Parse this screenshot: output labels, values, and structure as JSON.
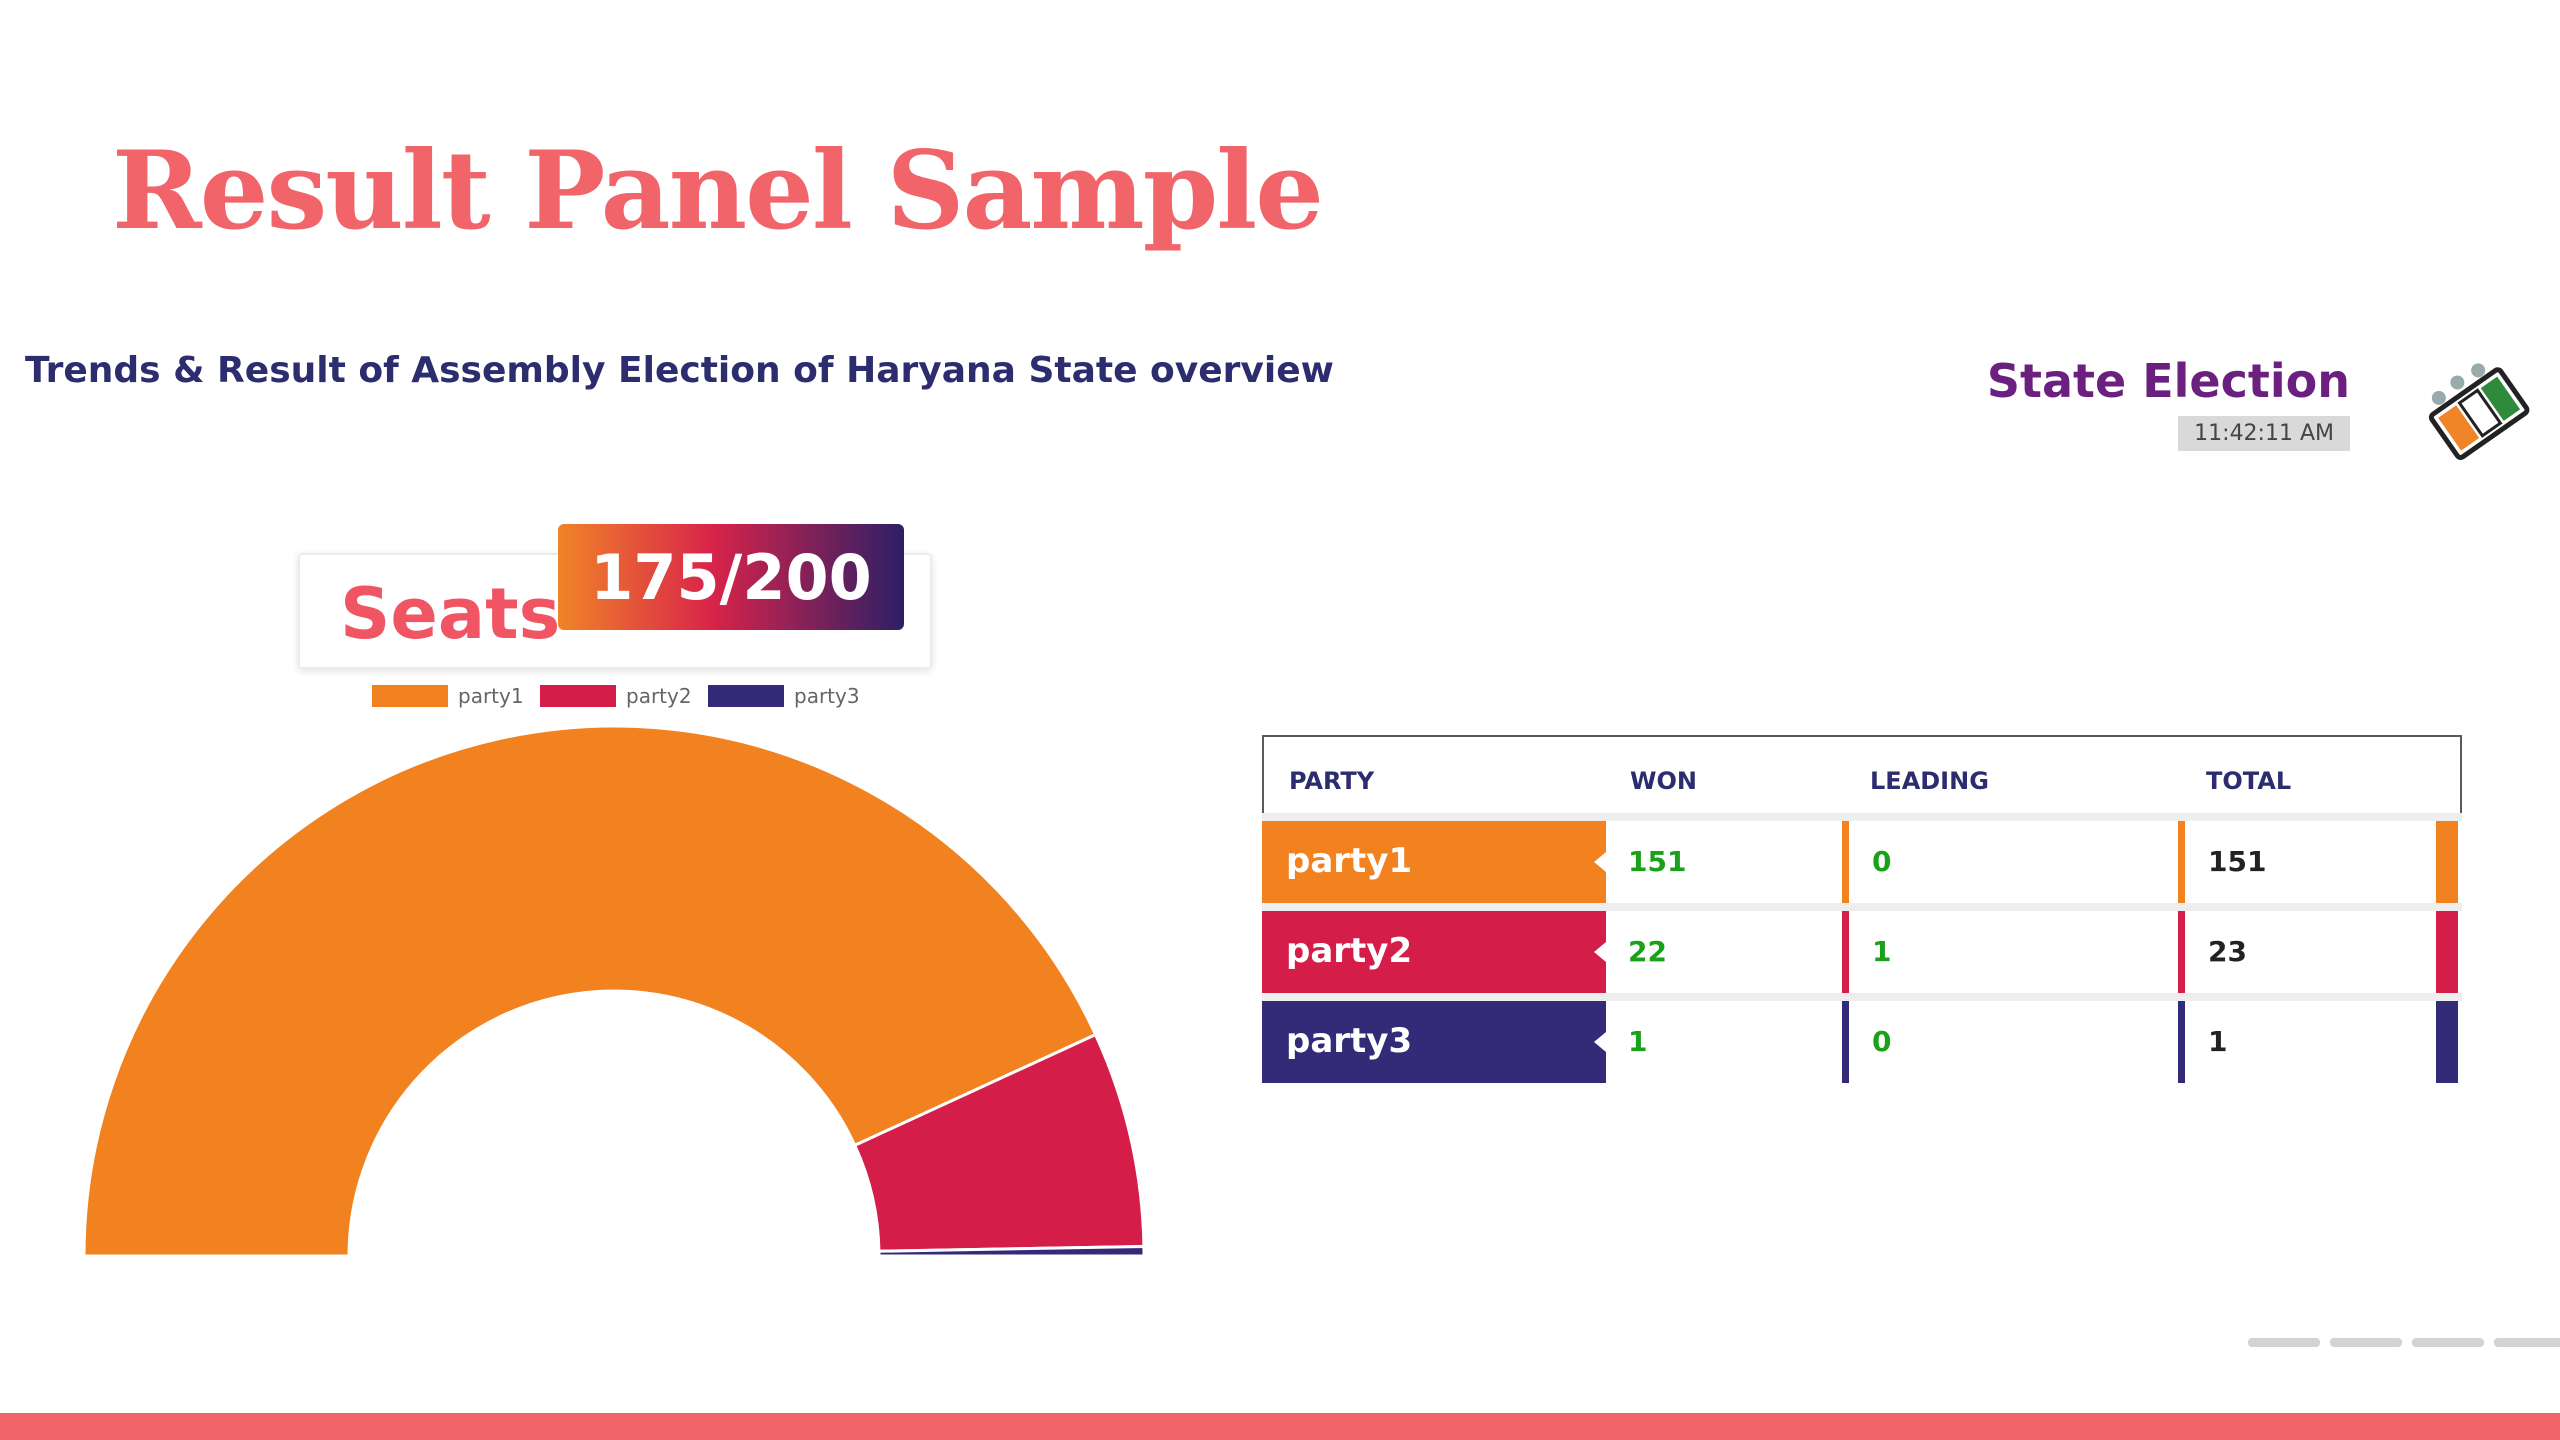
{
  "header": {
    "title": "Result Panel Sample",
    "subtitle": "Trends & Result of Assembly Election of Haryana State overview"
  },
  "brand": {
    "title": "State Election",
    "time": "11:42:11 AM",
    "logo_icon": "ballot-box-icon"
  },
  "seats": {
    "label": "Seats",
    "count": "175/200"
  },
  "colors": {
    "party1": "#f2811f",
    "party2": "#d41e49",
    "party3": "#332b78",
    "accent": "#f0646a"
  },
  "chart_data": {
    "type": "pie",
    "variant": "half-doughnut",
    "categories": [
      "party1",
      "party2",
      "party3"
    ],
    "values": [
      151,
      23,
      1
    ],
    "total": 200,
    "legend_position": "top-center"
  },
  "table": {
    "headers": [
      "PARTY",
      "WON",
      "LEADING",
      "TOTAL"
    ],
    "rows": [
      {
        "party": "party1",
        "won": "151",
        "leading": "0",
        "total": "151"
      },
      {
        "party": "party2",
        "won": "22",
        "leading": "1",
        "total": "23"
      },
      {
        "party": "party3",
        "won": "1",
        "leading": "0",
        "total": "1"
      }
    ]
  }
}
